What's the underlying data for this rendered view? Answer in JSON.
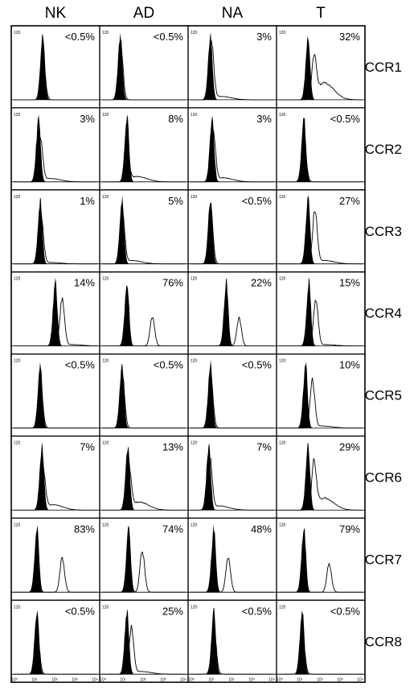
{
  "figure": {
    "columns": [
      "NK",
      "AD",
      "NA",
      "T"
    ],
    "rows": [
      "CCR1",
      "CCR2",
      "CCR3",
      "CCR4",
      "CCR5",
      "CCR6",
      "CCR7",
      "CCR8"
    ],
    "y_tick": "120",
    "x_ticks": [
      "10⁰",
      "10¹",
      "10²",
      "10³",
      "10⁴"
    ]
  },
  "colors": {
    "filled": "#000000",
    "open_line": "#000000",
    "frame": "#000000"
  },
  "chart_data": {
    "type": "histogram-grid",
    "x_scale": "log",
    "xlim": [
      1,
      10000
    ],
    "filled_series": "isotype control",
    "open_series": "antibody",
    "panels": [
      {
        "row": "CCR1",
        "column": "NK",
        "percent": "<0.5%",
        "control_peak": 3.5,
        "stain_peak": 3.5,
        "stain_height": 0.6,
        "tail": 0
      },
      {
        "row": "CCR1",
        "column": "AD",
        "percent": "<0.5%",
        "control_peak": 2.2,
        "stain_peak": 2.2,
        "stain_height": 0.85,
        "tail": 0
      },
      {
        "row": "CCR1",
        "column": "NA",
        "percent": "3%",
        "control_peak": 2.4,
        "stain_peak": 2.5,
        "stain_height": 0.85,
        "tail": 0.05
      },
      {
        "row": "CCR1",
        "column": "T",
        "percent": "32%",
        "control_peak": 3.5,
        "stain_peak": 4.2,
        "stain_height": 0.62,
        "tail": 0.25
      },
      {
        "row": "CCR2",
        "column": "NK",
        "percent": "3%",
        "control_peak": 3.0,
        "stain_peak": 3.2,
        "stain_height": 0.62,
        "tail": 0.05
      },
      {
        "row": "CCR2",
        "column": "AD",
        "percent": "8%",
        "control_peak": 3.0,
        "stain_peak": 3.0,
        "stain_height": 0.38,
        "tail": 0.08
      },
      {
        "row": "CCR2",
        "column": "NA",
        "percent": "3%",
        "control_peak": 2.6,
        "stain_peak": 2.7,
        "stain_height": 0.75,
        "tail": 0.06
      },
      {
        "row": "CCR2",
        "column": "T",
        "percent": "<0.5%",
        "control_peak": 3.0,
        "stain_peak": 3.0,
        "stain_height": 0.55,
        "tail": 0
      },
      {
        "row": "CCR3",
        "column": "NK",
        "percent": "1%",
        "control_peak": 3.2,
        "stain_peak": 3.3,
        "stain_height": 0.65,
        "tail": 0.02
      },
      {
        "row": "CCR3",
        "column": "AD",
        "percent": "5%",
        "control_peak": 2.4,
        "stain_peak": 2.4,
        "stain_height": 0.82,
        "tail": 0.05
      },
      {
        "row": "CCR3",
        "column": "NA",
        "percent": "<0.5%",
        "control_peak": 2.4,
        "stain_peak": 2.4,
        "stain_height": 0.82,
        "tail": 0
      },
      {
        "row": "CCR3",
        "column": "T",
        "percent": "27%",
        "control_peak": 3.5,
        "stain_peak": 4.3,
        "stain_height": 0.8,
        "tail": 0.05
      },
      {
        "row": "CCR4",
        "column": "NK",
        "percent": "14%",
        "control_peak": 5.0,
        "stain_peak": 5.8,
        "stain_height": 0.7,
        "tail": 0.02
      },
      {
        "row": "CCR4",
        "column": "AD",
        "percent": "76%",
        "control_peak": 3.0,
        "stain_peak": 6.0,
        "stain_height": 0.42,
        "tail": 0
      },
      {
        "row": "CCR4",
        "column": "NA",
        "percent": "22%",
        "control_peak": 4.3,
        "stain_peak": 5.8,
        "stain_height": 0.42,
        "tail": 0
      },
      {
        "row": "CCR4",
        "column": "T",
        "percent": "15%",
        "control_peak": 3.6,
        "stain_peak": 4.4,
        "stain_height": 0.7,
        "tail": 0.02
      },
      {
        "row": "CCR5",
        "column": "NK",
        "percent": "<0.5%",
        "control_peak": 3.2,
        "stain_peak": 3.2,
        "stain_height": 0.62,
        "tail": 0
      },
      {
        "row": "CCR5",
        "column": "AD",
        "percent": "<0.5%",
        "control_peak": 2.4,
        "stain_peak": 2.4,
        "stain_height": 0.8,
        "tail": 0
      },
      {
        "row": "CCR5",
        "column": "NA",
        "percent": "<0.5%",
        "control_peak": 2.4,
        "stain_peak": 2.4,
        "stain_height": 0.8,
        "tail": 0
      },
      {
        "row": "CCR5",
        "column": "T",
        "percent": "10%",
        "control_peak": 3.2,
        "stain_peak": 4.0,
        "stain_height": 0.7,
        "tail": 0.03
      },
      {
        "row": "CCR6",
        "column": "NK",
        "percent": "7%",
        "control_peak": 3.4,
        "stain_peak": 3.5,
        "stain_height": 0.62,
        "tail": 0.08
      },
      {
        "row": "CCR6",
        "column": "AD",
        "percent": "13%",
        "control_peak": 3.1,
        "stain_peak": 3.2,
        "stain_height": 0.65,
        "tail": 0.12
      },
      {
        "row": "CCR6",
        "column": "NA",
        "percent": "7%",
        "control_peak": 2.2,
        "stain_peak": 2.3,
        "stain_height": 0.8,
        "tail": 0.06
      },
      {
        "row": "CCR6",
        "column": "T",
        "percent": "29%",
        "control_peak": 3.5,
        "stain_peak": 4.2,
        "stain_height": 0.7,
        "tail": 0.18
      },
      {
        "row": "CCR7",
        "column": "NK",
        "percent": "83%",
        "control_peak": 2.8,
        "stain_peak": 5.8,
        "stain_height": 0.5,
        "tail": 0
      },
      {
        "row": "CCR7",
        "column": "AD",
        "percent": "74%",
        "control_peak": 3.2,
        "stain_peak": 4.8,
        "stain_height": 0.62,
        "tail": 0
      },
      {
        "row": "CCR7",
        "column": "NA",
        "percent": "48%",
        "control_peak": 2.8,
        "stain_peak": 4.5,
        "stain_height": 0.52,
        "tail": 0
      },
      {
        "row": "CCR7",
        "column": "T",
        "percent": "79%",
        "control_peak": 3.0,
        "stain_peak": 6.0,
        "stain_height": 0.42,
        "tail": 0
      },
      {
        "row": "CCR8",
        "column": "NK",
        "percent": "<0.5%",
        "control_peak": 2.8,
        "stain_peak": 2.8,
        "stain_height": 0.65,
        "tail": 0
      },
      {
        "row": "CCR8",
        "column": "AD",
        "percent": "25%",
        "control_peak": 3.0,
        "stain_peak": 3.5,
        "stain_height": 0.68,
        "tail": 0.04
      },
      {
        "row": "CCR8",
        "column": "NA",
        "percent": "<0.5%",
        "control_peak": 2.8,
        "stain_peak": 2.8,
        "stain_height": 0.65,
        "tail": 0
      },
      {
        "row": "CCR8",
        "column": "T",
        "percent": "<0.5%",
        "control_peak": 2.8,
        "stain_peak": 2.8,
        "stain_height": 0.62,
        "tail": 0
      }
    ]
  }
}
